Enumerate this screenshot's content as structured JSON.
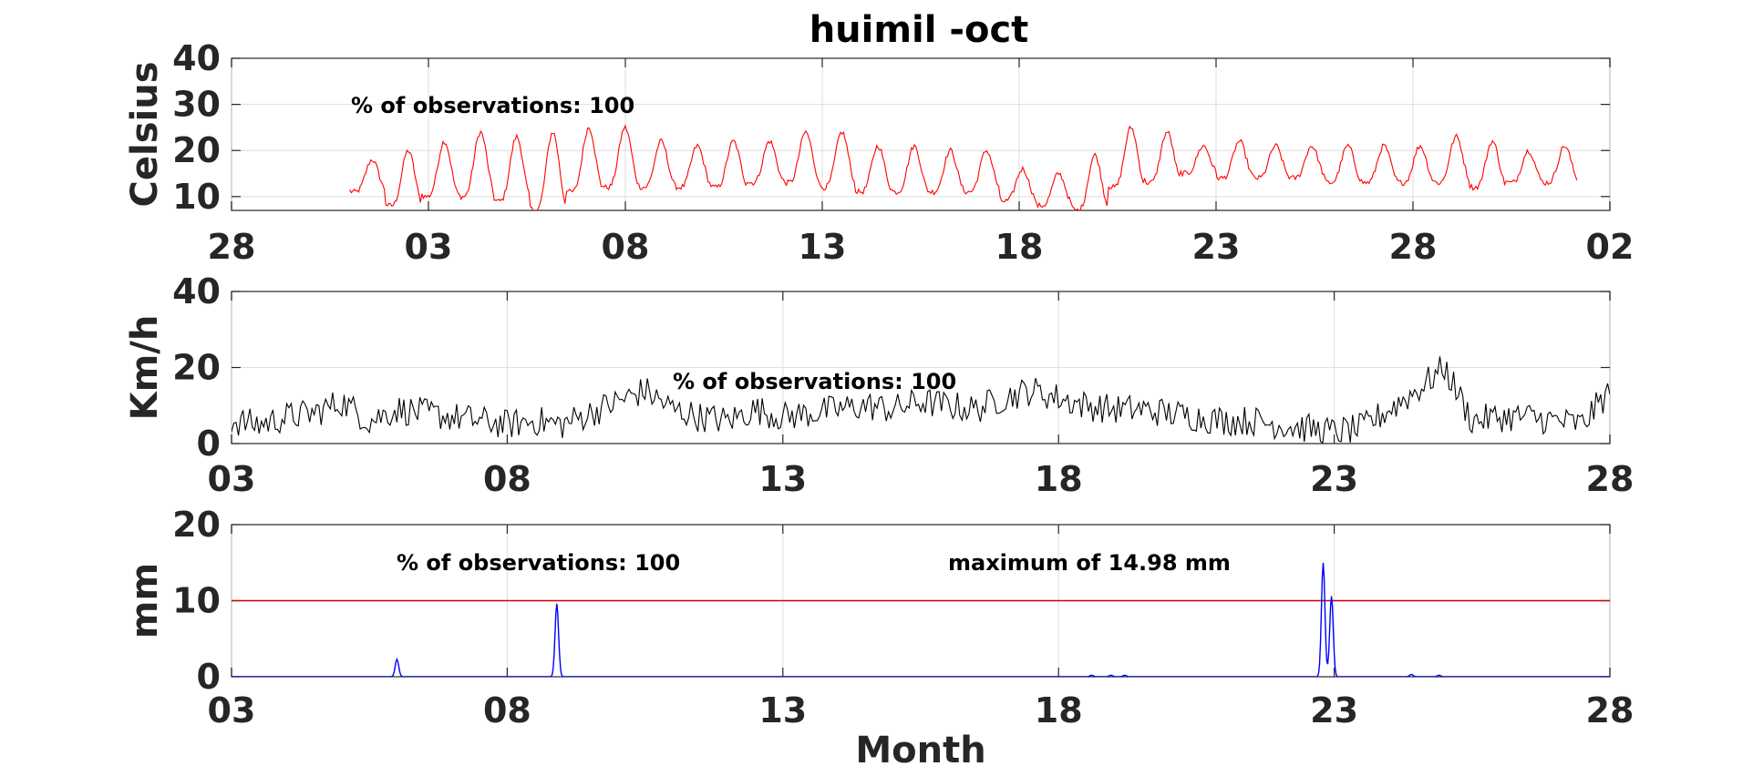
{
  "title": "huimil -oct",
  "colors": {
    "temperature": "#ff0000",
    "wind": "#000000",
    "rain": "#0000ff",
    "threshold": "#cc0000"
  },
  "chart_data": [
    {
      "type": "line",
      "ylabel": "Celsius",
      "xlabel": "",
      "xlim": [
        0,
        35
      ],
      "ylim": [
        7,
        40
      ],
      "yticks": [
        "10",
        "20",
        "30",
        "40"
      ],
      "ytick_values": [
        10,
        20,
        30,
        40
      ],
      "xticks": [
        "28",
        "03",
        "08",
        "13",
        "18",
        "23",
        "28",
        "02"
      ],
      "xtick_values": [
        0,
        5,
        10,
        15,
        20,
        25,
        30,
        35
      ],
      "grid": true,
      "annotation": "% of observations: 100",
      "series": [
        {
          "color": "#ff0000",
          "daily_min": [
            11,
            8,
            10,
            10,
            9,
            7,
            11,
            12,
            12,
            12,
            12,
            13,
            13,
            12,
            11,
            11,
            11,
            11,
            9,
            8,
            7,
            12,
            13,
            15,
            14,
            14,
            14,
            13,
            13,
            13,
            13,
            12,
            13,
            13
          ],
          "daily_max": [
            18,
            20,
            22,
            24,
            23,
            24,
            25,
            25,
            22,
            21,
            22,
            22,
            24,
            24,
            21,
            21,
            20,
            20,
            16,
            15,
            19,
            25,
            24,
            21,
            22,
            21,
            21,
            21,
            21,
            21,
            23,
            22,
            20,
            21
          ],
          "x_start": 3.0,
          "x_end": 34.2
        }
      ]
    },
    {
      "type": "line",
      "ylabel": "Km/h",
      "xlabel": "",
      "xlim": [
        0,
        25
      ],
      "ylim": [
        0,
        40
      ],
      "yticks": [
        "0",
        "20",
        "40"
      ],
      "ytick_values": [
        0,
        20,
        40
      ],
      "xticks": [
        "03",
        "08",
        "13",
        "18",
        "23",
        "28"
      ],
      "xtick_values": [
        0,
        5,
        10,
        15,
        20,
        25
      ],
      "grid": true,
      "annotation": "% of observations: 100",
      "series": [
        {
          "color": "#000000",
          "x": [
            0,
            0.5,
            1,
            1.5,
            2,
            2.5,
            3,
            3.5,
            4,
            4.5,
            5,
            5.5,
            6,
            6.5,
            7,
            7.5,
            8,
            8.5,
            9,
            9.5,
            10,
            10.5,
            11,
            11.5,
            12,
            12.5,
            13,
            13.5,
            14,
            14.5,
            15,
            15.5,
            16,
            16.5,
            17,
            17.5,
            18,
            18.5,
            19,
            19.5,
            20,
            20.5,
            21,
            21.5,
            22,
            22.5,
            23,
            23.5,
            24,
            24.5,
            25
          ],
          "values": [
            6,
            5,
            7,
            8,
            11,
            6,
            9,
            8,
            7,
            6,
            5,
            6,
            5,
            8,
            11,
            14,
            9,
            7,
            6,
            9,
            7,
            8,
            9,
            10,
            9,
            11,
            10,
            9,
            12,
            14,
            12,
            10,
            9,
            9,
            8,
            7,
            6,
            6,
            5,
            4,
            3,
            4,
            9,
            14,
            20,
            6,
            7,
            7,
            6,
            5,
            14
          ]
        }
      ]
    },
    {
      "type": "line",
      "ylabel": "mm",
      "xlabel": "Month",
      "xlim": [
        0,
        25
      ],
      "ylim": [
        0,
        20
      ],
      "yticks": [
        "0",
        "10",
        "20"
      ],
      "ytick_values": [
        0,
        10,
        20
      ],
      "xticks": [
        "03",
        "08",
        "13",
        "18",
        "23",
        "28"
      ],
      "xtick_values": [
        0,
        5,
        10,
        15,
        20,
        25
      ],
      "grid": true,
      "annotation": "% of observations: 100",
      "annotation2": "maximum of 14.98 mm",
      "threshold": 10,
      "series": [
        {
          "color": "#0000ff",
          "peaks": [
            {
              "x": 3.0,
              "value": 2.3
            },
            {
              "x": 5.9,
              "value": 9.6
            },
            {
              "x": 15.6,
              "value": 0.2
            },
            {
              "x": 15.95,
              "value": 0.2
            },
            {
              "x": 16.2,
              "value": 0.2
            },
            {
              "x": 19.8,
              "value": 14.98
            },
            {
              "x": 19.95,
              "value": 10.6
            },
            {
              "x": 21.4,
              "value": 0.3
            },
            {
              "x": 21.9,
              "value": 0.2
            }
          ]
        }
      ]
    }
  ]
}
